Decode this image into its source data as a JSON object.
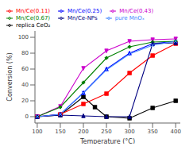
{
  "chart_data": {
    "type": "line",
    "x_label": "Temperature (°C)",
    "y_label": "Conversion (%)",
    "xlim": [
      95,
      410
    ],
    "ylim": [
      -8,
      108
    ],
    "xticks": [
      100,
      150,
      200,
      250,
      300,
      350,
      400
    ],
    "yticks": [
      0,
      20,
      40,
      60,
      80,
      100
    ],
    "grid": false,
    "legend": "upper left",
    "series": [
      {
        "name": "replica CeO₂",
        "color": "#000000",
        "marker": "square",
        "x": [
          100,
          150,
          200,
          225,
          250,
          300,
          350,
          400
        ],
        "values": [
          0,
          2,
          25,
          12,
          0,
          -2,
          11,
          20
        ]
      },
      {
        "name": "Mn/Ce(0.11)",
        "color": "#ff0000",
        "marker": "square",
        "x": [
          100,
          150,
          200,
          250,
          300,
          350,
          400
        ],
        "values": [
          0,
          3,
          16,
          29,
          55,
          77,
          92
        ]
      },
      {
        "name": "Mn/Ce(0.25)",
        "color": "#0000ff",
        "marker": "triangle-up",
        "x": [
          100,
          150,
          200,
          250,
          300,
          350,
          400
        ],
        "values": [
          0,
          3,
          30,
          60,
          80,
          92,
          95
        ]
      },
      {
        "name": "Mn/Ce(0.43)",
        "color": "#cc00cc",
        "marker": "triangle-down",
        "x": [
          100,
          150,
          200,
          250,
          300,
          350,
          400
        ],
        "values": [
          0,
          13,
          61,
          83,
          95,
          97,
          98
        ]
      },
      {
        "name": "Mn/Ce(0.67)",
        "color": "#008000",
        "marker": "diamond",
        "x": [
          100,
          150,
          200,
          250,
          300,
          350,
          400
        ],
        "values": [
          0,
          12,
          43,
          74,
          88,
          94,
          95
        ]
      },
      {
        "name": "Mn/Ce-NPs",
        "color": "#000080",
        "marker": "triangle-up",
        "x": [
          100,
          150,
          200,
          250,
          300,
          350,
          400
        ],
        "values": [
          0,
          2,
          1,
          0,
          0,
          92,
          93
        ]
      },
      {
        "name": "pure MnOₓ",
        "color": "#4488ff",
        "marker": "x",
        "x": [
          100,
          150,
          200,
          250,
          300,
          350,
          400
        ],
        "values": [
          0,
          3,
          30,
          59,
          79,
          90,
          95
        ]
      }
    ]
  }
}
